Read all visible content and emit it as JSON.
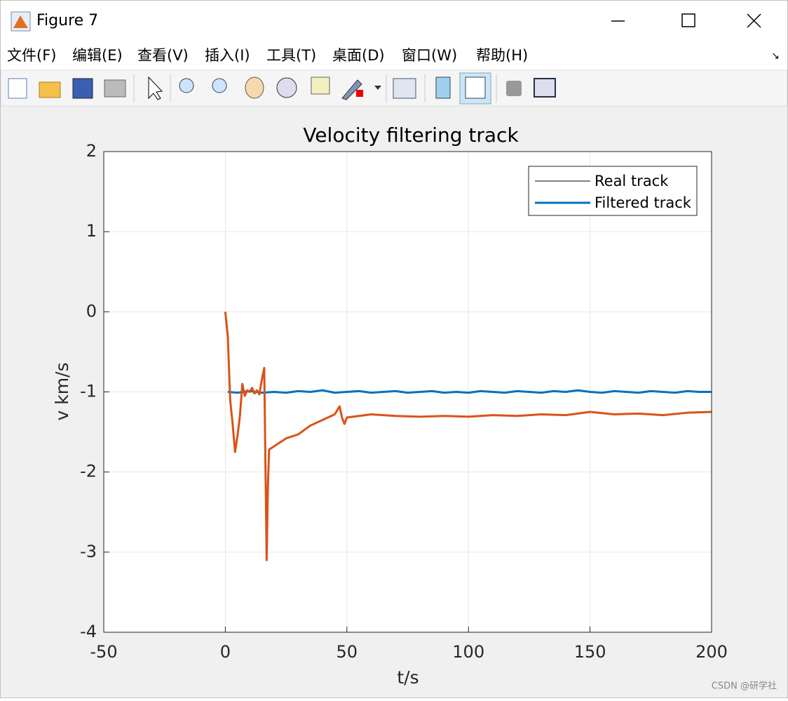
{
  "window_title": "Figure 7",
  "menu": [
    "文件(F)",
    "编辑(E)",
    "查看(V)",
    "插入(I)",
    "工具(T)",
    "桌面(D)",
    "窗口(W)",
    "帮助(H)"
  ],
  "watermark": "CSDN @研学社",
  "chart_data": {
    "type": "line",
    "title": "Velocity filtering track",
    "xlabel": "t/s",
    "ylabel": "v km/s",
    "xlim": [
      -50,
      200
    ],
    "xticks": [
      -50,
      0,
      50,
      100,
      150,
      200
    ],
    "ylim": [
      -4,
      2
    ],
    "yticks": [
      -4,
      -3,
      -2,
      -1,
      0,
      1,
      2
    ],
    "grid": true,
    "legend_position": "upper right",
    "legend": [
      {
        "name": "Real track",
        "color": "#000000",
        "width": 1
      },
      {
        "name": "Filtered track",
        "color": "#0072bd",
        "width": 3
      }
    ],
    "series": [
      {
        "color": "#0072bd",
        "x": [
          1,
          5,
          10,
          15,
          20,
          25,
          30,
          35,
          40,
          45,
          50,
          55,
          60,
          65,
          70,
          75,
          80,
          85,
          90,
          95,
          100,
          105,
          110,
          115,
          120,
          125,
          130,
          135,
          140,
          145,
          150,
          155,
          160,
          165,
          170,
          175,
          180,
          185,
          190,
          195,
          200
        ],
        "values": [
          -1,
          -1.01,
          -0.99,
          -1.01,
          -1,
          -1.01,
          -0.99,
          -1,
          -0.98,
          -1.01,
          -1,
          -0.99,
          -1.01,
          -1,
          -0.99,
          -1.01,
          -1,
          -0.99,
          -1.01,
          -1,
          -1.01,
          -0.99,
          -1,
          -1.01,
          -0.99,
          -1,
          -1.01,
          -0.99,
          -1,
          -0.98,
          -1,
          -1.01,
          -0.99,
          -1,
          -1.01,
          -0.99,
          -1,
          -1.01,
          -0.99,
          -1,
          -1
        ]
      },
      {
        "color": "#d95319",
        "x": [
          0,
          1,
          2,
          3,
          4,
          5,
          6,
          7,
          8,
          9,
          10,
          11,
          12,
          13,
          14,
          15,
          16,
          17,
          17.5,
          18,
          20,
          25,
          30,
          35,
          40,
          45,
          47,
          48,
          49,
          50,
          55,
          60,
          70,
          80,
          90,
          100,
          110,
          120,
          130,
          140,
          150,
          160,
          170,
          180,
          190,
          200
        ],
        "values": [
          0,
          -0.3,
          -1.1,
          -1.4,
          -1.75,
          -1.55,
          -1.3,
          -0.9,
          -1.05,
          -0.98,
          -1.0,
          -0.95,
          -1.02,
          -0.98,
          -1.03,
          -0.85,
          -0.7,
          -3.1,
          -2.2,
          -1.72,
          -1.68,
          -1.58,
          -1.53,
          -1.42,
          -1.35,
          -1.28,
          -1.18,
          -1.32,
          -1.4,
          -1.32,
          -1.3,
          -1.28,
          -1.3,
          -1.31,
          -1.3,
          -1.31,
          -1.29,
          -1.3,
          -1.28,
          -1.29,
          -1.25,
          -1.28,
          -1.27,
          -1.29,
          -1.26,
          -1.25
        ]
      }
    ]
  }
}
